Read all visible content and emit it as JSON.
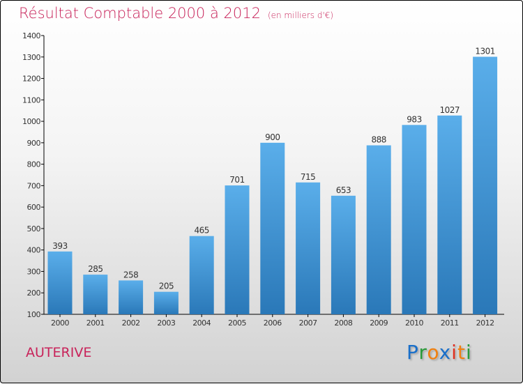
{
  "chart_data": {
    "type": "bar",
    "title": "Résultat Comptable 2000 à 2012",
    "subtitle": "(en milliers d'€)",
    "categories": [
      "2000",
      "2001",
      "2002",
      "2003",
      "2004",
      "2005",
      "2006",
      "2007",
      "2008",
      "2009",
      "2010",
      "2011",
      "2012"
    ],
    "values": [
      393,
      285,
      258,
      205,
      465,
      701,
      900,
      715,
      653,
      888,
      983,
      1027,
      1301
    ],
    "ylim": [
      100,
      1400
    ],
    "yticks": [
      100,
      200,
      300,
      400,
      500,
      600,
      700,
      800,
      900,
      1000,
      1100,
      1200,
      1300,
      1400
    ],
    "xlabel": "",
    "ylabel": "",
    "grid": false,
    "colors": {
      "bar_top": "#5aaeea",
      "bar_bottom": "#2a78b8",
      "title": "#c8235a"
    }
  },
  "location": "AUTERIVE",
  "logo": {
    "letters": [
      "P",
      "r",
      "o",
      "x",
      "i",
      "t",
      "i"
    ],
    "colors": [
      "#1a6fc9",
      "#2a9a3a",
      "#f08010",
      "#1a6fc9",
      "#e03020",
      "#f08010",
      "#2a9a3a"
    ]
  }
}
